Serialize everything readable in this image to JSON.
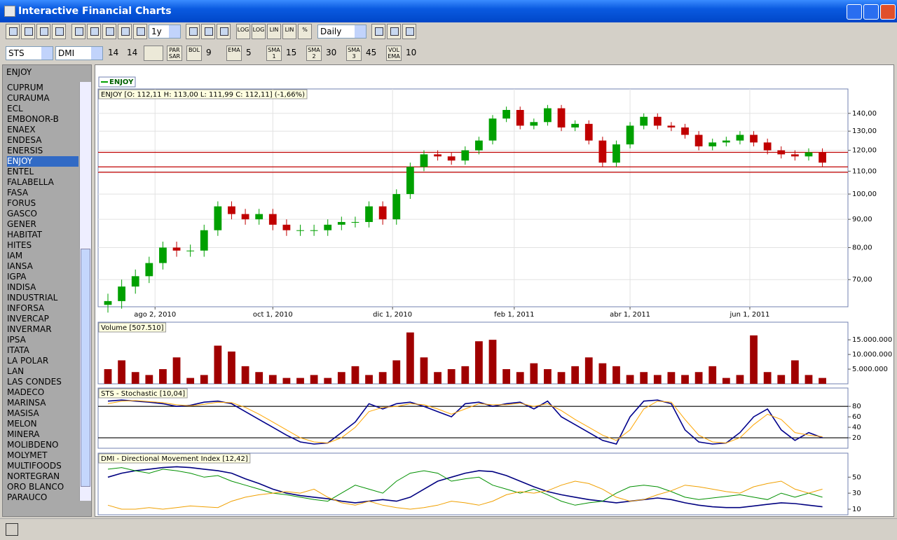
{
  "window": {
    "title": "Interactive Financial Charts"
  },
  "toolbar": {
    "period": "1y",
    "text_buttons": [
      "LOG",
      "LOG",
      "LIN",
      "LIN",
      "%"
    ],
    "interval": "Daily"
  },
  "indicator_bar": {
    "indicator1": "STS",
    "indicator2": "DMI",
    "params": [
      "14",
      "14"
    ],
    "overlays": [
      {
        "label": "PAR SAR"
      },
      {
        "label": "BOL",
        "param": "9"
      },
      {
        "label": "EMA",
        "param": "5"
      },
      {
        "label": "SMA 1",
        "param": "15"
      },
      {
        "label": "SMA 2",
        "param": "30"
      },
      {
        "label": "SMA 3",
        "param": "45"
      },
      {
        "label": "VOL EMA",
        "param": "10"
      }
    ]
  },
  "sidebar": {
    "header": "ENJOY",
    "selected_index": 7,
    "items": [
      "CUPRUM",
      "CURAUMA",
      "ECL",
      "EMBONOR-B",
      "ENAEX",
      "ENDESA",
      "ENERSIS",
      "ENJOY",
      "ENTEL",
      "FALABELLA",
      "FASA",
      "FORUS",
      "GASCO",
      "GENER",
      "HABITAT",
      "HITES",
      "IAM",
      "IANSA",
      "IGPA",
      "INDISA",
      "INDUSTRIAL",
      "INFORSA",
      "INVERCAP",
      "INVERMAR",
      "IPSA",
      "ITATA",
      "LA POLAR",
      "LAN",
      "LAS CONDES",
      "MADECO",
      "MARINSA",
      "MASISA",
      "MELON",
      "MINERA",
      "MOLIBDENO",
      "MOLYMET",
      "MULTIFOODS",
      "NORTEGRAN",
      "ORO BLANCO",
      "PARAUCO"
    ]
  },
  "chart_data": {
    "type": "candlestick",
    "legend": "ENJOY",
    "info": "ENJOY [O: 112,11  H: 113,00  L: 111,99  C: 112,11] (-1,66%)",
    "up_color": "#00a000",
    "down_color": "#c00000",
    "log": true,
    "grid": true,
    "x": [
      "2010-07-09",
      "2010-07-16",
      "2010-07-23",
      "2010-07-30",
      "2010-08-06",
      "2010-08-13",
      "2010-08-20",
      "2010-08-27",
      "2010-09-03",
      "2010-09-10",
      "2010-09-17",
      "2010-09-24",
      "2010-10-01",
      "2010-10-08",
      "2010-10-15",
      "2010-10-22",
      "2010-10-29",
      "2010-11-05",
      "2010-11-12",
      "2010-11-19",
      "2010-11-26",
      "2010-12-03",
      "2010-12-10",
      "2010-12-17",
      "2010-12-24",
      "2010-12-31",
      "2011-01-07",
      "2011-01-14",
      "2011-01-21",
      "2011-01-28",
      "2011-02-04",
      "2011-02-11",
      "2011-02-18",
      "2011-02-25",
      "2011-03-04",
      "2011-03-11",
      "2011-03-18",
      "2011-03-25",
      "2011-04-01",
      "2011-04-08",
      "2011-04-15",
      "2011-04-22",
      "2011-04-29",
      "2011-05-06",
      "2011-05-13",
      "2011-05-20",
      "2011-05-27",
      "2011-06-03",
      "2011-06-10",
      "2011-06-17",
      "2011-06-24",
      "2011-07-01",
      "2011-07-08"
    ],
    "open": [
      63,
      64,
      68,
      71,
      75,
      80,
      79,
      79,
      86,
      95,
      92,
      90,
      92,
      88,
      86,
      86,
      86,
      88,
      89,
      89,
      95,
      90,
      100,
      112,
      118,
      117,
      115,
      120,
      125,
      137,
      142,
      133,
      135,
      143,
      132,
      134,
      125,
      114,
      123,
      133,
      138,
      133,
      132,
      128,
      122,
      124,
      125,
      128,
      124,
      120,
      118,
      117,
      119
    ],
    "high": [
      66,
      70,
      73,
      77,
      82,
      82,
      81,
      88,
      97,
      97,
      94,
      94,
      94,
      90,
      88,
      88,
      90,
      91,
      91,
      97,
      97,
      102,
      114,
      120,
      120,
      119,
      122,
      127,
      139,
      144,
      144,
      137,
      145,
      145,
      136,
      136,
      127,
      125,
      135,
      140,
      140,
      135,
      134,
      130,
      126,
      127,
      130,
      130,
      126,
      122,
      120,
      121,
      121
    ],
    "low": [
      61,
      62,
      66,
      69,
      73,
      77,
      77,
      77,
      84,
      90,
      88,
      88,
      86,
      84,
      84,
      84,
      84,
      86,
      87,
      87,
      88,
      88,
      98,
      110,
      115,
      113,
      113,
      118,
      123,
      135,
      131,
      131,
      133,
      130,
      130,
      123,
      112,
      112,
      121,
      131,
      131,
      130,
      126,
      120,
      120,
      122,
      123,
      122,
      118,
      116,
      115,
      115,
      112
    ],
    "close": [
      64,
      68,
      71,
      75,
      80,
      79,
      79,
      86,
      95,
      92,
      90,
      92,
      88,
      86,
      86,
      86,
      88,
      89,
      89,
      95,
      90,
      100,
      112,
      118,
      117,
      115,
      120,
      125,
      137,
      142,
      133,
      135,
      143,
      132,
      134,
      125,
      114,
      123,
      133,
      138,
      133,
      132,
      128,
      122,
      124,
      125,
      128,
      124,
      120,
      118,
      117,
      119,
      114
    ],
    "xlim": [
      "2010-07-04",
      "2011-07-21"
    ],
    "xticks": [
      {
        "value": "2010-08-02",
        "label": "ago 2, 2010"
      },
      {
        "value": "2010-10-01",
        "label": "oct 1, 2010"
      },
      {
        "value": "2010-12-01",
        "label": "dic 1, 2010"
      },
      {
        "value": "2011-02-01",
        "label": "feb 1, 2011"
      },
      {
        "value": "2011-04-01",
        "label": "abr 1, 2011"
      },
      {
        "value": "2011-06-01",
        "label": "jun 1, 2011"
      }
    ],
    "ylim": [
      62.5,
      155
    ],
    "yticks": [
      {
        "value": 70,
        "label": "70,00"
      },
      {
        "value": 80,
        "label": "80,00"
      },
      {
        "value": 90,
        "label": "90,00"
      },
      {
        "value": 100,
        "label": "100,00"
      },
      {
        "value": 110,
        "label": "110,00"
      },
      {
        "value": 120,
        "label": "120,00"
      },
      {
        "value": 130,
        "label": "130,00"
      },
      {
        "value": 140,
        "label": "140,00"
      }
    ],
    "levels": [
      119,
      112,
      109.5
    ],
    "level_color": "#c00000",
    "panels": [
      {
        "type": "bar",
        "title": "Volume [507.510]",
        "ylim": [
          0,
          21000000
        ],
        "yticks": [
          {
            "value": 5000000,
            "label": "5.000.000"
          },
          {
            "value": 10000000,
            "label": "10.000.000"
          },
          {
            "value": 15000000,
            "label": "15.000.000"
          }
        ],
        "series": [
          {
            "color": "#a00000",
            "values": [
              5000000,
              8000000,
              4000000,
              3000000,
              5000000,
              9000000,
              2000000,
              3000000,
              13000000,
              11000000,
              6000000,
              4000000,
              3000000,
              2000000,
              2000000,
              3000000,
              2000000,
              4000000,
              6000000,
              3000000,
              4000000,
              8000000,
              17500000,
              9000000,
              4000000,
              5000000,
              6000000,
              14500000,
              15000000,
              5000000,
              4000000,
              7000000,
              5000000,
              4000000,
              6000000,
              9000000,
              7000000,
              6000000,
              3000000,
              4000000,
              3000000,
              4000000,
              3000000,
              4000000,
              6000000,
              2000000,
              3000000,
              16500000,
              4000000,
              3000000,
              8000000,
              3000000,
              2000000
            ]
          }
        ]
      },
      {
        "type": "line",
        "title": "STS - Stochastic [10,04]",
        "ylim": [
          0,
          115
        ],
        "yticks": [
          20,
          40,
          60,
          80
        ],
        "levels": [
          80,
          20
        ],
        "level_color": "#000000",
        "series": [
          {
            "color": "#00008b",
            "values": [
              90,
              92,
              90,
              88,
              85,
              80,
              82,
              88,
              90,
              85,
              70,
              55,
              40,
              25,
              12,
              8,
              10,
              30,
              50,
              85,
              75,
              85,
              88,
              80,
              70,
              60,
              85,
              88,
              80,
              85,
              88,
              75,
              90,
              60,
              45,
              30,
              15,
              8,
              60,
              90,
              92,
              85,
              35,
              12,
              8,
              10,
              30,
              60,
              75,
              35,
              15,
              30,
              20
            ]
          },
          {
            "color": "#ffa500",
            "values": [
              85,
              90,
              91,
              89,
              87,
              83,
              81,
              84,
              88,
              87,
              78,
              65,
              50,
              35,
              20,
              12,
              10,
              20,
              40,
              70,
              78,
              80,
              85,
              83,
              75,
              65,
              75,
              85,
              83,
              83,
              86,
              80,
              85,
              72,
              55,
              40,
              25,
              15,
              35,
              75,
              90,
              88,
              55,
              25,
              12,
              10,
              20,
              45,
              65,
              55,
              30,
              25,
              22
            ]
          }
        ]
      },
      {
        "type": "line",
        "title": "DMI - Directional Movement Index [12,42]",
        "ylim": [
          3,
          80
        ],
        "yticks": [
          10,
          30,
          50
        ],
        "series": [
          {
            "color": "#000080",
            "values": [
              50,
              55,
              58,
              60,
              62,
              63,
              62,
              60,
              58,
              55,
              48,
              42,
              35,
              30,
              27,
              25,
              23,
              20,
              18,
              20,
              22,
              20,
              25,
              35,
              45,
              50,
              55,
              58,
              57,
              52,
              45,
              38,
              32,
              28,
              25,
              22,
              20,
              18,
              20,
              22,
              24,
              22,
              18,
              15,
              13,
              12,
              12,
              14,
              16,
              18,
              17,
              15,
              13
            ]
          },
          {
            "color": "#009000",
            "values": [
              60,
              62,
              58,
              55,
              60,
              58,
              55,
              50,
              52,
              45,
              40,
              35,
              30,
              28,
              25,
              22,
              20,
              30,
              40,
              35,
              30,
              45,
              55,
              58,
              55,
              45,
              48,
              50,
              40,
              35,
              30,
              35,
              28,
              20,
              15,
              18,
              20,
              30,
              38,
              40,
              38,
              32,
              25,
              22,
              24,
              26,
              28,
              25,
              22,
              30,
              25,
              30,
              25
            ]
          },
          {
            "color": "#f0a000",
            "values": [
              15,
              10,
              10,
              12,
              10,
              12,
              14,
              13,
              12,
              20,
              25,
              28,
              30,
              32,
              30,
              35,
              25,
              18,
              15,
              20,
              15,
              12,
              10,
              12,
              15,
              20,
              18,
              15,
              20,
              28,
              32,
              30,
              33,
              40,
              45,
              42,
              35,
              25,
              20,
              22,
              28,
              33,
              40,
              38,
              35,
              32,
              30,
              38,
              42,
              45,
              35,
              30,
              35
            ]
          }
        ]
      }
    ]
  }
}
